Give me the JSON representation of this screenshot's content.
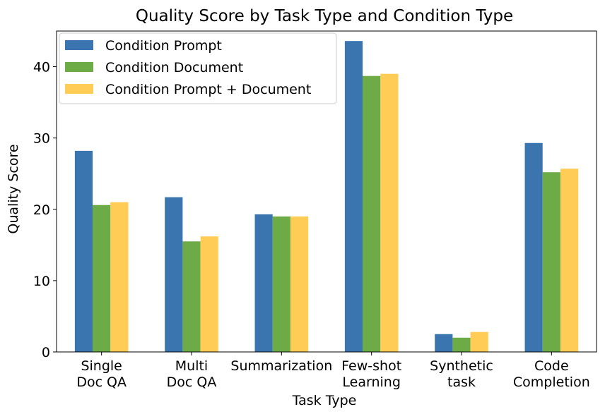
{
  "chart_data": {
    "type": "bar",
    "title": "Quality Score by Task Type and Condition Type",
    "xlabel": "Task Type",
    "ylabel": "Quality Score",
    "ylim": [
      0,
      45
    ],
    "yticks": [
      0,
      10,
      20,
      30,
      40
    ],
    "categories": [
      [
        "Single",
        "Doc QA"
      ],
      [
        "Multi",
        "Doc QA"
      ],
      [
        "Summarization"
      ],
      [
        "Few-shot",
        "Learning"
      ],
      [
        "Synthetic",
        "task"
      ],
      [
        "Code",
        "Completion"
      ]
    ],
    "series": [
      {
        "name": "Condition Prompt",
        "color": "#3B75AF",
        "values": [
          28.2,
          21.7,
          19.3,
          43.6,
          2.5,
          29.3
        ]
      },
      {
        "name": "Condition Document",
        "color": "#6CAB46",
        "values": [
          20.6,
          15.5,
          19.0,
          38.7,
          2.0,
          25.2
        ]
      },
      {
        "name": "Condition Prompt + Document",
        "color": "#FFCC55",
        "values": [
          21.0,
          16.2,
          19.0,
          39.0,
          2.8,
          25.7
        ]
      }
    ],
    "legend": "top-left",
    "grid": false
  }
}
